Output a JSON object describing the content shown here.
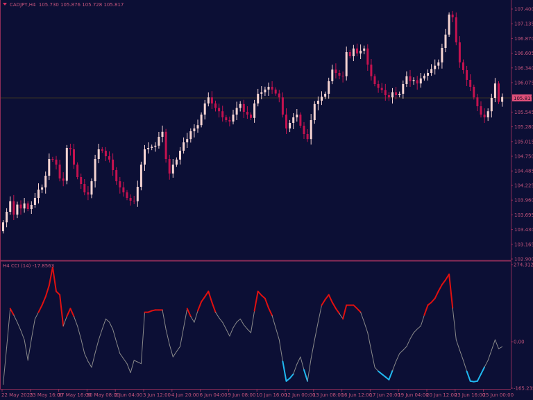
{
  "header": {
    "symbol": "CADJPY,H4",
    "open": "105.730",
    "high": "105.876",
    "low": "105.728",
    "close": "105.817"
  },
  "indicator_header": {
    "label": "H4 CCI (14)",
    "value": "-17.8563"
  },
  "colors": {
    "background": "#0c0f35",
    "axis": "#8c2c58",
    "text": "#c4547c",
    "bull": "#f6d4d2",
    "bear": "#c4124f",
    "cci_neutral": "#8a8a8a",
    "cci_high": "#e01010",
    "cci_low": "#20b8f0",
    "price_line": "#3a3322",
    "price_tag": "#e0507a"
  },
  "chart_data": [
    {
      "type": "candlestick",
      "title": "CADJPY,H4",
      "ylim": [
        102.9,
        107.4
      ],
      "y_ticks": [
        "107.400",
        "107.135",
        "106.870",
        "106.605",
        "106.340",
        "106.075",
        "105.545",
        "105.280",
        "105.015",
        "104.750",
        "104.485",
        "104.225",
        "103.960",
        "103.695",
        "103.430",
        "103.165",
        "102.900"
      ],
      "current_price": "105.817",
      "x_ticks": [
        "22 May 2025",
        "23 May 16:00",
        "27 May 16:00",
        "30 May 08:00",
        "2 Jun 04:00",
        "3 Jun 12:00",
        "4 Jun 20:00",
        "6 Jun 04:00",
        "9 Jun 08:00",
        "10 Jun 16:00",
        "12 Jun 00:00",
        "13 Jun 08:00",
        "16 Jun 12:00",
        "17 Jun 20:00",
        "19 Jun 04:00",
        "20 Jun 12:00",
        "23 Jun 16:00",
        "25 Jun 00:00"
      ],
      "first_open": 103.4,
      "close": [
        103.56,
        103.75,
        103.94,
        103.7,
        103.88,
        103.81,
        103.9,
        103.8,
        103.875,
        104.0,
        104.15,
        104.19,
        104.4,
        104.7,
        104.69,
        104.6,
        104.35,
        104.31,
        104.9,
        104.875,
        104.6,
        104.375,
        104.25,
        104.1,
        104.06,
        104.3,
        104.7,
        104.875,
        104.85,
        104.75,
        104.69,
        104.5,
        104.3,
        104.19,
        104.1,
        104.0,
        103.95,
        103.94,
        104.2,
        104.6,
        104.875,
        104.9,
        104.92,
        104.94,
        105.1,
        105.19,
        104.7,
        104.44,
        104.6,
        104.69,
        104.85,
        105.0,
        105.06,
        105.2,
        105.25,
        105.31,
        105.5,
        105.7,
        105.81,
        105.7,
        105.62,
        105.56,
        105.45,
        105.4,
        105.375,
        105.5,
        105.62,
        105.69,
        105.55,
        105.5,
        105.44,
        105.7,
        105.875,
        105.9,
        105.95,
        106.0,
        105.95,
        105.88,
        105.81,
        105.5,
        105.25,
        105.35,
        105.45,
        105.5,
        105.3,
        105.15,
        105.06,
        105.4,
        105.69,
        105.75,
        105.82,
        105.875,
        106.1,
        106.31,
        106.25,
        106.2,
        106.19,
        106.625,
        106.55,
        106.69,
        106.6,
        106.65,
        106.69,
        106.4,
        106.19,
        106.05,
        105.98,
        105.94,
        105.85,
        105.81,
        105.9,
        105.85,
        105.875,
        106.05,
        106.19,
        106.1,
        106.12,
        106.06,
        106.15,
        106.2,
        106.25,
        106.32,
        106.38,
        106.44,
        106.7,
        106.94,
        107.3,
        107.25,
        106.8,
        106.44,
        106.3,
        106.125,
        106.0,
        105.81,
        105.65,
        105.5,
        105.45,
        105.56,
        105.8,
        106.06,
        105.73,
        105.817
      ]
    },
    {
      "type": "line",
      "title": "H4 CCI (14)",
      "ylim": [
        -165.235,
        274.3127
      ],
      "y_ticks": [
        "274.3127",
        "0.00",
        "-165.235"
      ],
      "levels": [
        100,
        -100
      ],
      "values": [
        -152,
        -20,
        118,
        95,
        69,
        40,
        7,
        -66,
        10,
        81,
        105,
        130,
        160,
        200,
        265,
        179,
        167,
        56,
        90,
        118,
        90,
        56,
        10,
        -42,
        -70,
        -91,
        -40,
        7,
        45,
        81,
        70,
        44,
        0,
        -42,
        -60,
        -78,
        -110,
        -66,
        -72,
        -78,
        105,
        105,
        110,
        113,
        113,
        113,
        44,
        -10,
        -54,
        -35,
        -17,
        50,
        118,
        90,
        69,
        110,
        142,
        160,
        179,
        140,
        105,
        85,
        69,
        45,
        20,
        50,
        70,
        81,
        60,
        45,
        32,
        110,
        179,
        165,
        154,
        120,
        93,
        50,
        7,
        -70,
        -140,
        -130,
        -115,
        -80,
        -54,
        -100,
        -140,
        -60,
        7,
        70,
        130,
        150,
        167,
        140,
        118,
        100,
        81,
        130,
        130,
        130,
        118,
        105,
        70,
        32,
        -30,
        -91,
        -105,
        -115,
        -125,
        -135,
        -103,
        -70,
        -42,
        -30,
        -17,
        10,
        32,
        45,
        56,
        95,
        130,
        140,
        154,
        180,
        203,
        220,
        240,
        120,
        7,
        -30,
        -66,
        -105,
        -140,
        -142,
        -140,
        -115,
        -90,
        -66,
        -30,
        7,
        -25,
        -17.86
      ]
    }
  ]
}
